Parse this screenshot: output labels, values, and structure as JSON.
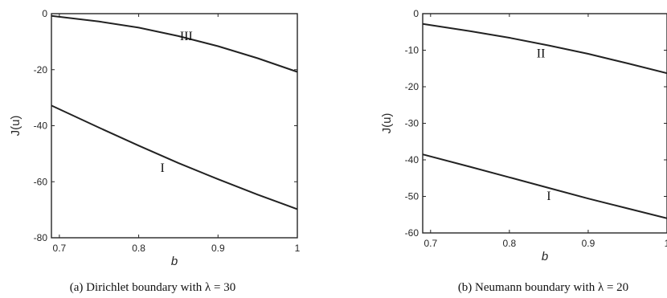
{
  "chart_data": [
    {
      "type": "line",
      "xlabel": "b",
      "ylabel": "J(u)",
      "xlim": [
        0.69,
        1.0
      ],
      "ylim": [
        -80,
        0
      ],
      "xticks": [
        0.7,
        0.8,
        0.9,
        1
      ],
      "xtick_labels": [
        "0.7",
        "0.8",
        "0.9",
        "1"
      ],
      "yticks": [
        0,
        -20,
        -40,
        -60,
        -80
      ],
      "ytick_labels": [
        "0",
        "-20",
        "-40",
        "-60",
        "-80"
      ],
      "grid": false,
      "caption": "(a) Dirichlet boundary with λ = 30",
      "series": [
        {
          "name": "III",
          "x": [
            0.69,
            0.75,
            0.8,
            0.85,
            0.9,
            0.95,
            1.0
          ],
          "y": [
            -0.8,
            -2.8,
            -5.0,
            -8.0,
            -11.6,
            -15.9,
            -20.8
          ]
        },
        {
          "name": "I",
          "x": [
            0.69,
            0.75,
            0.8,
            0.85,
            0.9,
            0.95,
            1.0
          ],
          "y": [
            -32.8,
            -40.7,
            -47.1,
            -53.3,
            -59.1,
            -64.6,
            -69.8
          ]
        }
      ],
      "annotations": [
        {
          "text": "III",
          "x": 0.86,
          "y": -9.5
        },
        {
          "text": "I",
          "x": 0.83,
          "y": -56.5
        }
      ]
    },
    {
      "type": "line",
      "xlabel": "b",
      "ylabel": "J(u)",
      "xlim": [
        0.69,
        1.0
      ],
      "ylim": [
        -60,
        0
      ],
      "xticks": [
        0.7,
        0.8,
        0.9,
        1
      ],
      "xtick_labels": [
        "0.7",
        "0.8",
        "0.9",
        "1"
      ],
      "yticks": [
        0,
        -10,
        -20,
        -30,
        -40,
        -50,
        -60
      ],
      "ytick_labels": [
        "0",
        "-10",
        "-20",
        "-30",
        "-40",
        "-50",
        "-60"
      ],
      "grid": false,
      "caption": "(b) Neumann boundary with λ = 20",
      "series": [
        {
          "name": "II",
          "x": [
            0.69,
            0.75,
            0.8,
            0.85,
            0.9,
            0.95,
            1.0
          ],
          "y": [
            -2.8,
            -4.8,
            -6.6,
            -8.7,
            -11.0,
            -13.6,
            -16.3
          ]
        },
        {
          "name": "I",
          "x": [
            0.69,
            0.75,
            0.8,
            0.85,
            0.9,
            0.95,
            1.0
          ],
          "y": [
            -38.5,
            -41.9,
            -44.8,
            -47.7,
            -50.6,
            -53.3,
            -56.0
          ]
        }
      ],
      "annotations": [
        {
          "text": "II",
          "x": 0.84,
          "y": -12.0
        },
        {
          "text": "I",
          "x": 0.85,
          "y": -51.0
        }
      ]
    }
  ]
}
